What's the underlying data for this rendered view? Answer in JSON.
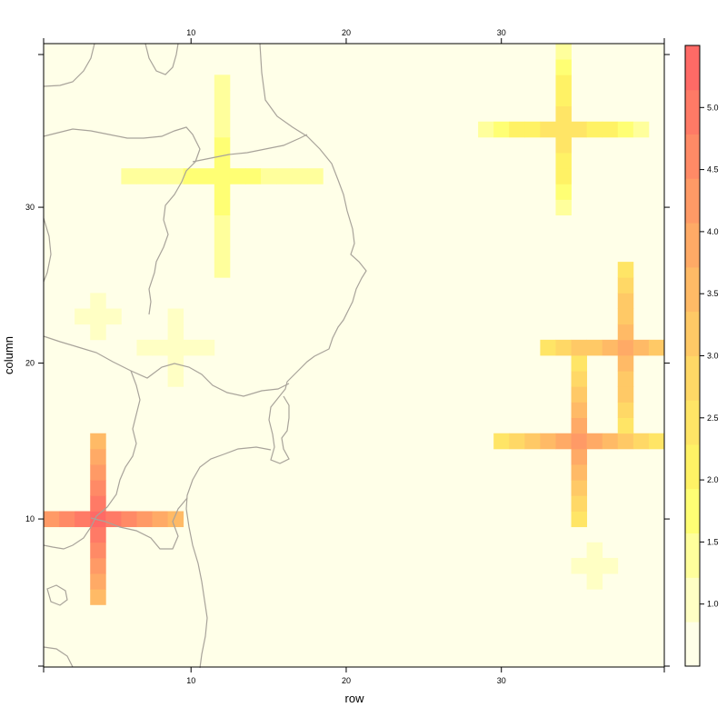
{
  "chart_data": {
    "type": "heatmap",
    "xlabel": "row",
    "ylabel": "column",
    "xlim": [
      0.5,
      40.5
    ],
    "ylim": [
      0.5,
      40.5
    ],
    "x_ticks": [
      10,
      20,
      30
    ],
    "y_ticks": [
      10,
      20,
      30
    ],
    "background_value": 0.5,
    "colorbar": {
      "ticks": [
        "1.0",
        "1.5",
        "2.0",
        "2.5",
        "3.0",
        "3.5",
        "4.0",
        "4.5",
        "5.0"
      ],
      "tick_values": [
        1.0,
        1.5,
        2.0,
        2.5,
        3.0,
        3.5,
        4.0,
        4.5,
        5.0
      ],
      "range": [
        0.5,
        5.5
      ],
      "colors": [
        "#FFFFE8",
        "#FFFFC4",
        "#FFFF9C",
        "#FFFF74",
        "#FFF265",
        "#FFE566",
        "#FFD866",
        "#FFC966",
        "#FFBA66",
        "#FFAA66",
        "#FF9A66",
        "#FF8A66",
        "#FF7A66",
        "#FF6A66"
      ]
    },
    "crosses": [
      {
        "row": 12,
        "col": 32,
        "peak": 1.8,
        "arm": 6,
        "end": 1.3
      },
      {
        "row": 34,
        "col": 35,
        "peak": 2.6,
        "arm": 5,
        "end": 1.5
      },
      {
        "row": 38,
        "col": 21,
        "peak": 3.9,
        "arm": 5,
        "end": 2.4
      },
      {
        "row": 35,
        "col": 15,
        "peak": 4.2,
        "arm": 5,
        "end": 2.4
      },
      {
        "row": 4,
        "col": 10,
        "peak": 5.4,
        "arm": 5,
        "end": 3.7
      },
      {
        "row": 4,
        "col": 23,
        "peak": 1.1,
        "arm": 1,
        "end": 1.05
      },
      {
        "row": 9,
        "col": 21,
        "peak": 1.2,
        "arm": 2,
        "end": 1.05
      },
      {
        "row": 36,
        "col": 7,
        "peak": 1.1,
        "arm": 1,
        "end": 1.05
      }
    ],
    "basemap": "coastline and prefecture boundaries"
  }
}
